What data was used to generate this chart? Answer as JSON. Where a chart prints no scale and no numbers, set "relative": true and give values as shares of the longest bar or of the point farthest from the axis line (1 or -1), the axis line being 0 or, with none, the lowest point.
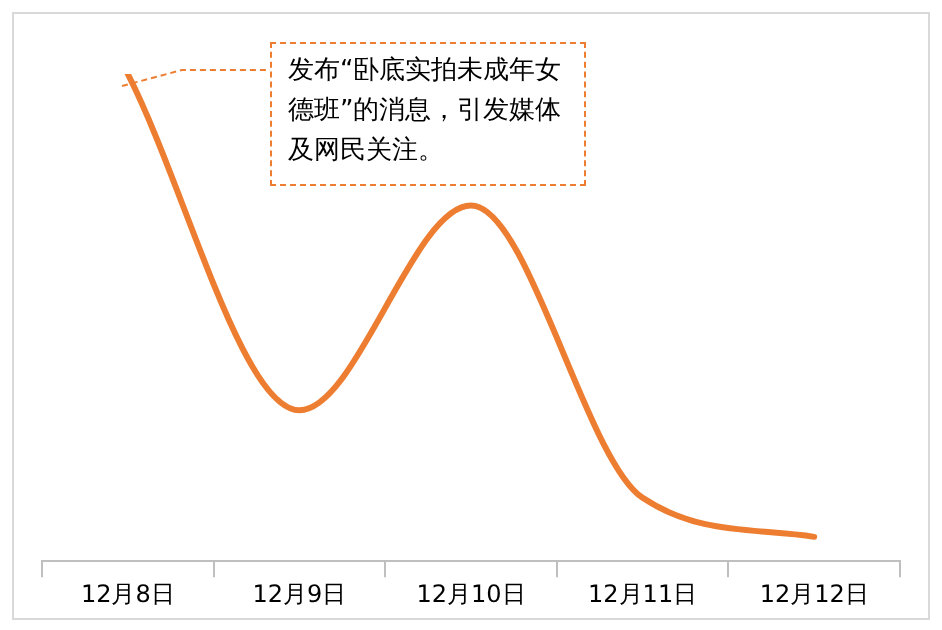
{
  "chart_data": {
    "type": "line",
    "relative": true,
    "categories": [
      "12月8日",
      "12月9日",
      "12月10日",
      "12月11日",
      "12月12日"
    ],
    "series": [
      {
        "color": "#ed7d31",
        "values": [
          1,
          0.31,
          0.73,
          0.13,
          0.05
        ]
      }
    ],
    "annotations": [
      "发布“卧底实拍未成年女德班”的消息，引发媒体及网民关注。"
    ],
    "grid": false,
    "legend": false,
    "marker": "none",
    "line_style": "solid"
  }
}
